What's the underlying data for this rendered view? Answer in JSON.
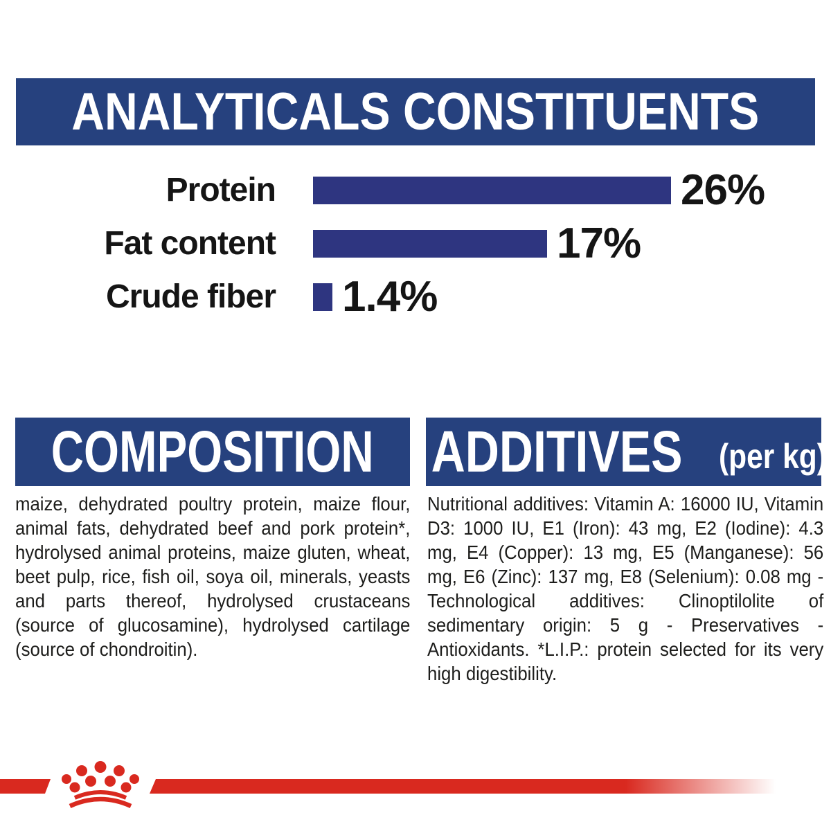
{
  "analyticals": {
    "title": "ANALYTICALS CONSTITUENTS"
  },
  "chart_data": {
    "type": "bar",
    "orientation": "horizontal",
    "title": "ANALYTICALS CONSTITUENTS",
    "categories": [
      "Protein",
      "Fat content",
      "Crude fiber"
    ],
    "values": [
      26,
      17,
      1.4
    ],
    "value_labels": [
      "26%",
      "17%",
      "1.4%"
    ],
    "unit": "%",
    "xlim": [
      0,
      30
    ],
    "grid": false,
    "legend": false,
    "bar_color": "#2E3580",
    "label_color": "#151515"
  },
  "composition": {
    "title": "COMPOSITION",
    "body": "maize, dehydrated poultry protein, maize flour, animal fats, dehydrated beef and pork protein*, hydrolysed animal proteins, maize gluten, wheat, beet pulp, rice, fish oil, soya oil, minerals, yeasts and parts thereof, hydrolysed crustaceans (source of glucosamine), hydrolysed cartilage (source of chondroitin)."
  },
  "additives": {
    "title": "ADDITIVES",
    "title_suffix": "(per kg)",
    "body": "Nutritional additives: Vitamin A: 16000 IU, Vitamin D3: 1000 IU, E1 (Iron): 43 mg, E2 (Iodine): 4.3 mg, E4 (Copper): 13 mg, E5 (Manganese): 56 mg, E6 (Zinc): 137 mg, E8 (Selenium): 0.08 mg - Technological additives: Clinoptilolite of sedimentary origin: 5 g - Preservatives - Antioxidants. *L.I.P.: protein selected for its very high digestibility."
  },
  "footer": {
    "logo": "royal-canin-crown"
  },
  "colors": {
    "header_navy": "#26417E",
    "bar_indigo": "#2E3580",
    "brand_red": "#D9291F",
    "text_black": "#1D1D1B"
  }
}
